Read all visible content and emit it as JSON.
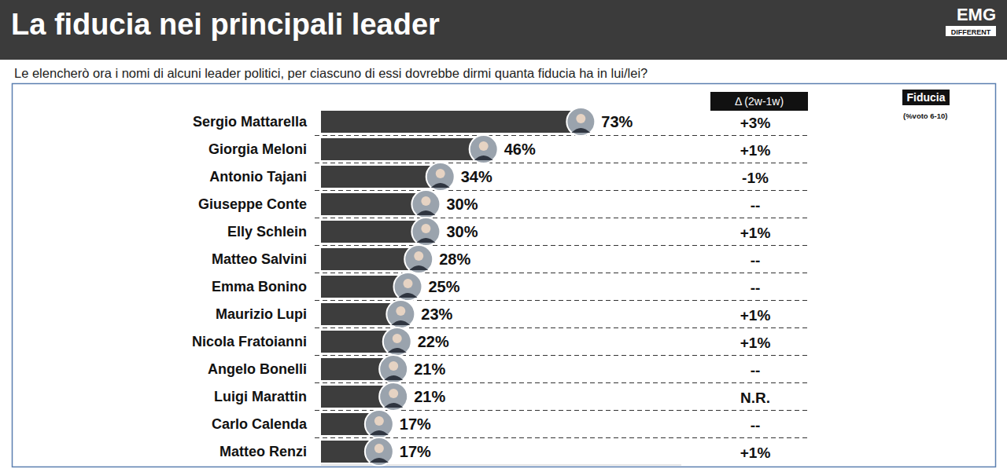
{
  "chart_data": {
    "type": "bar",
    "orientation": "horizontal",
    "title": "La fiducia nei principali leader",
    "subtitle": "Le elencherò ora i nomi di alcuni leader politici, per ciascuno di essi dovrebbe dirmi quanta fiducia ha in lui/lei?",
    "categories": [
      "Sergio Mattarella",
      "Giorgia Meloni",
      "Antonio Tajani",
      "Giuseppe Conte",
      "Elly Schlein",
      "Matteo Salvini",
      "Emma Bonino",
      "Maurizio Lupi",
      "Nicola Fratoianni",
      "Angelo Bonelli",
      "Luigi Marattin",
      "Carlo Calenda",
      "Matteo Renzi"
    ],
    "values": [
      73,
      46,
      34,
      30,
      30,
      28,
      25,
      23,
      22,
      21,
      21,
      17,
      17
    ],
    "value_labels": [
      "73%",
      "46%",
      "34%",
      "30%",
      "30%",
      "28%",
      "25%",
      "23%",
      "22%",
      "21%",
      "21%",
      "17%",
      "17%"
    ],
    "data_labels": true,
    "color": "#3d3d3d",
    "xlim": [
      0,
      100
    ],
    "tick_labels": false,
    "grid": false,
    "annotations": {
      "delta_title": "Δ (2w-1w)",
      "delta_labels": [
        "+3%",
        "+1%",
        "-1%",
        "--",
        "+1%",
        "--",
        "--",
        "+1%",
        "+1%",
        "--",
        "N.R.",
        "--",
        "+1%"
      ],
      "fiducia_label": "Fiducia",
      "fiducia_note": "(%voto 6-10)",
      "logo": "EMG",
      "logo_sub": "DIFFERENT"
    }
  }
}
